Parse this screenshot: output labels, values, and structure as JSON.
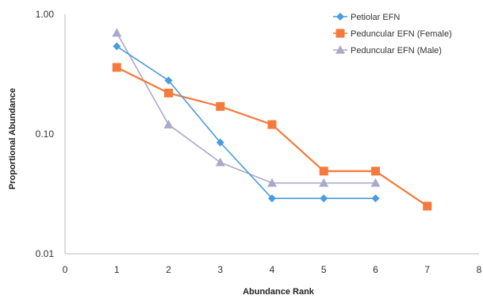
{
  "chart_data": {
    "type": "line",
    "xlabel": "Abundance Rank",
    "ylabel": "Proportional Abundance",
    "xlim": [
      0,
      8
    ],
    "ylim": [
      0.01,
      1.0
    ],
    "y_scale": "log",
    "x_ticks": [
      "0",
      "1",
      "2",
      "3",
      "4",
      "5",
      "6",
      "7",
      "8"
    ],
    "y_ticks": [
      "0.01",
      "0.10",
      "1.00"
    ],
    "legend_position": "top-right",
    "series": [
      {
        "name": "Petiolar EFN",
        "color": "#4a9be0",
        "marker": "diamond",
        "x": [
          1,
          2,
          3,
          4,
          5,
          6
        ],
        "y": [
          0.54,
          0.28,
          0.085,
          0.029,
          0.029,
          0.029
        ]
      },
      {
        "name": "Peduncular EFN (Female)",
        "color": "#f47a3d",
        "marker": "square",
        "x": [
          1,
          2,
          3,
          4,
          5,
          6,
          7
        ],
        "y": [
          0.36,
          0.22,
          0.17,
          0.12,
          0.049,
          0.049,
          0.025
        ]
      },
      {
        "name": "Peduncular EFN (Male)",
        "color": "#a9a9c9",
        "marker": "triangle",
        "x": [
          1,
          2,
          3,
          4,
          5,
          6
        ],
        "y": [
          0.7,
          0.12,
          0.058,
          0.039,
          0.039,
          0.039
        ]
      }
    ]
  }
}
